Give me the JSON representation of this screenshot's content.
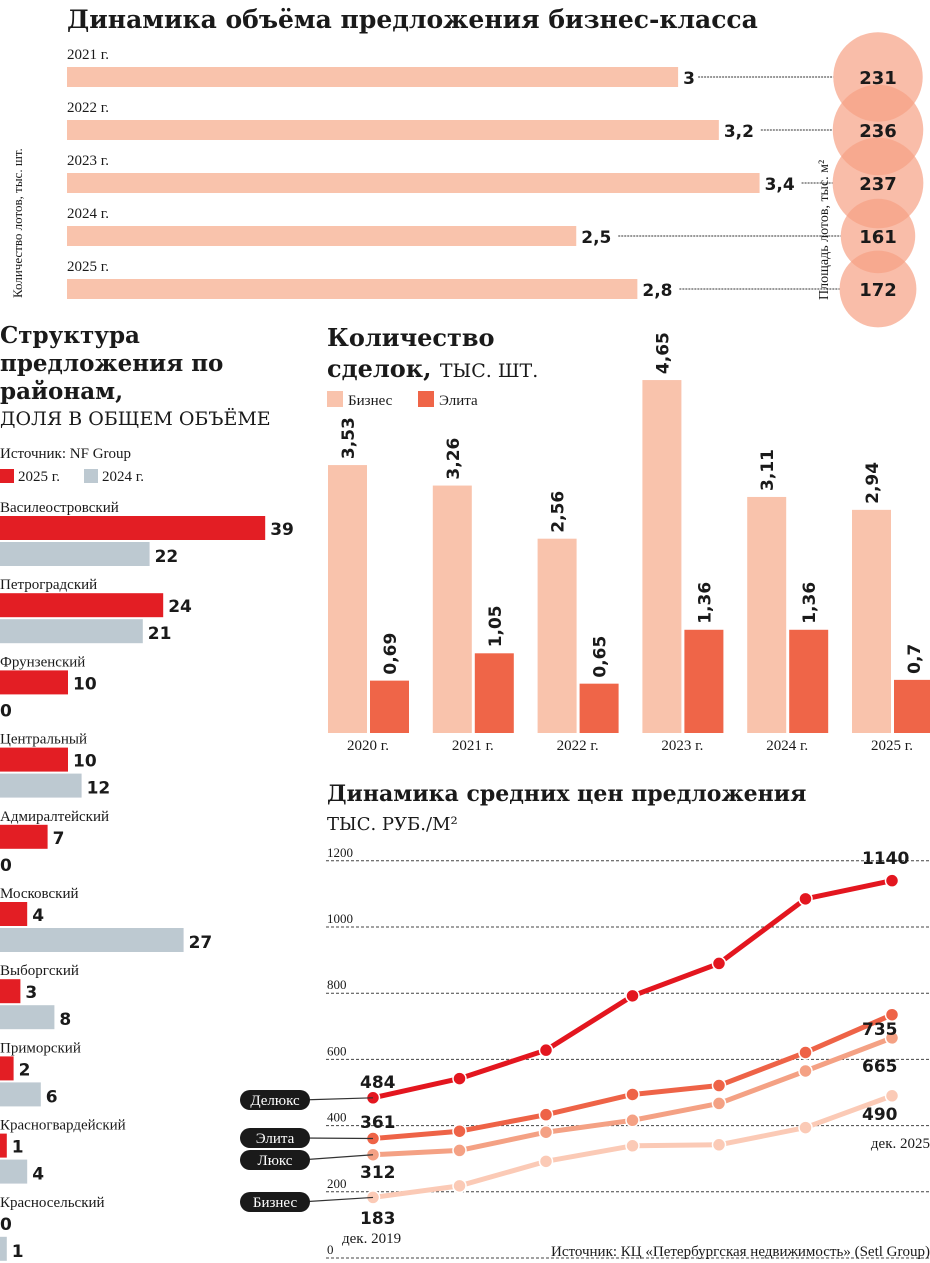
{
  "colors": {
    "business": "#f9c3ac",
    "elite": "#ef6548",
    "y2025": "#e31e24",
    "y2024": "#bdc9d1",
    "circle": "#f6a184",
    "deluxe_line": "#e3161f",
    "elite_line": "#ee6347",
    "lux_line": "#f4a184",
    "business_line": "#fbcab6"
  },
  "chart_data": [
    {
      "type": "bar",
      "title": "Динамика объёма предложения бизнес-класса",
      "ylabel": "Количество лотов, тыс. шт.",
      "secondary_label": "Площадь лотов, тыс. м²",
      "categories": [
        "2021 г.",
        "2022 г.",
        "2023 г.",
        "2024 г.",
        "2025 г."
      ],
      "values": [
        3,
        3.2,
        3.4,
        2.5,
        2.8
      ],
      "value_labels": [
        "3",
        "3,2",
        "3,4",
        "2,5",
        "2,8"
      ],
      "area_values": [
        231,
        236,
        237,
        161,
        172
      ],
      "area_labels": [
        "231",
        "236",
        "237",
        "161",
        "172"
      ],
      "orientation": "horizontal"
    },
    {
      "type": "bar",
      "title": "Структура предложения по районам,",
      "subtitle": "доля в общем объёме",
      "source": "Источник: NF Group",
      "orientation": "horizontal",
      "categories": [
        "Василеостровский",
        "Петроградский",
        "Фрунзенский",
        "Центральный",
        "Адмиралтейский",
        "Московский",
        "Выборгский",
        "Приморский",
        "Красногвардейский",
        "Красносельский"
      ],
      "series": [
        {
          "name": "2025 г.",
          "values": [
            39,
            24,
            10,
            10,
            7,
            4,
            3,
            2,
            1,
            0
          ]
        },
        {
          "name": "2024 г.",
          "values": [
            22,
            21,
            0,
            12,
            0,
            27,
            8,
            6,
            4,
            1
          ]
        }
      ],
      "legend": "top-left"
    },
    {
      "type": "bar",
      "title": "Количество сделок,",
      "subtitle": "тыс. шт.",
      "categories": [
        "2020 г.",
        "2021 г.",
        "2022 г.",
        "2023 г.",
        "2024 г.",
        "2025 г."
      ],
      "series": [
        {
          "name": "Бизнес",
          "values": [
            3.53,
            3.26,
            2.56,
            4.65,
            3.11,
            2.94
          ],
          "labels": [
            "3,53",
            "3,26",
            "2,56",
            "4,65",
            "3,11",
            "2,94"
          ]
        },
        {
          "name": "Элита",
          "values": [
            0.69,
            1.05,
            0.65,
            1.36,
            1.36,
            0.7
          ],
          "labels": [
            "0,69",
            "1,05",
            "0,65",
            "1,36",
            "1,36",
            "0,7"
          ]
        }
      ],
      "legend": "top-left"
    },
    {
      "type": "line",
      "title": "Динамика средних цен предложения",
      "ylabel": "тыс. руб./м²",
      "ylim": [
        0,
        1200
      ],
      "yticks": [
        "0",
        "200",
        "400",
        "600",
        "800",
        "1000",
        "1200"
      ],
      "grid": true,
      "x_start_label": "дек. 2019",
      "x_end_label": "дек. 2025",
      "source": "Источник: КЦ «Петербургская недвижимость» (Setl Group)",
      "series": [
        {
          "name": "Делюкс",
          "values": [
            484,
            542,
            628,
            792,
            890,
            1085,
            1140
          ],
          "start_label": "484",
          "end_label": "1140"
        },
        {
          "name": "Элита",
          "values": [
            361,
            383,
            433,
            494,
            521,
            621,
            735
          ],
          "start_label": "361",
          "end_label": "735"
        },
        {
          "name": "Люкс",
          "values": [
            312,
            325,
            380,
            416,
            467,
            565,
            665
          ],
          "start_label": "312",
          "end_label": "665"
        },
        {
          "name": "Бизнес",
          "values": [
            183,
            218,
            292,
            339,
            342,
            394,
            490
          ],
          "start_label": "183",
          "end_label": "490"
        }
      ]
    }
  ]
}
